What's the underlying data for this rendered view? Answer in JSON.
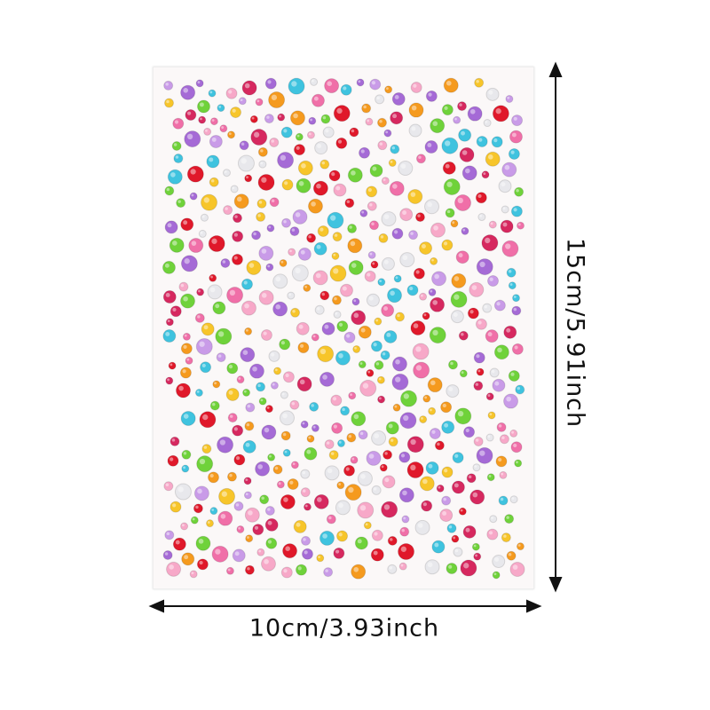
{
  "dimensions": {
    "width_label": "10cm/3.93inch",
    "height_label": "15cm/5.91inch"
  },
  "product": {
    "name": "rhinestone-sticker-sheet",
    "gem_colors": [
      "#e0182a",
      "#f06fa8",
      "#f7a8c8",
      "#a56ad6",
      "#c99be8",
      "#3fc3df",
      "#6fd23a",
      "#f7c52a",
      "#f59a1e",
      "#e8e8ec",
      "#d6285f"
    ]
  }
}
